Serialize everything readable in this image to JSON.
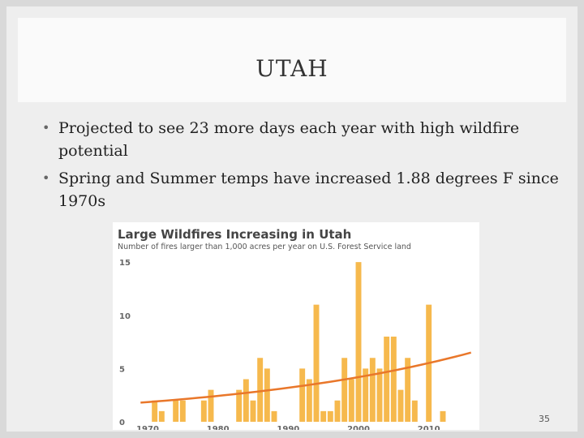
{
  "slide": {
    "title": "UTAH",
    "bullets": [
      "Projected to see 23 more days each year with high wildfire potential",
      "Spring and Summer temps have increased 1.88 degrees F since 1970s"
    ],
    "page_number": "35"
  },
  "chart_data": {
    "type": "bar",
    "title": "Large Wildfires Increasing in Utah",
    "subtitle": "Number of fires larger than 1,000 acres per year on U.S. Forest Service land",
    "x": [
      1970,
      1971,
      1972,
      1973,
      1974,
      1975,
      1976,
      1977,
      1978,
      1979,
      1980,
      1981,
      1982,
      1983,
      1984,
      1985,
      1986,
      1987,
      1988,
      1989,
      1990,
      1991,
      1992,
      1993,
      1994,
      1995,
      1996,
      1997,
      1998,
      1999,
      2000,
      2001,
      2002,
      2003,
      2004,
      2005,
      2006,
      2007,
      2008,
      2009,
      2010,
      2011,
      2012,
      2013,
      2014,
      2015,
      2016
    ],
    "values": [
      0,
      2,
      1,
      0,
      2,
      2,
      0,
      0,
      2,
      3,
      0,
      0,
      0,
      3,
      4,
      2,
      6,
      5,
      1,
      0,
      0,
      0,
      5,
      4,
      11,
      1,
      1,
      2,
      6,
      4,
      15,
      5,
      6,
      5,
      8,
      8,
      3,
      6,
      2,
      0,
      11,
      0,
      1,
      0,
      0,
      0,
      0
    ],
    "trend": {
      "start": [
        1969,
        1.8
      ],
      "end": [
        2016,
        6.5
      ]
    },
    "xticks": [
      "1970",
      "1980",
      "1990",
      "2000",
      "2010"
    ],
    "xtick_values": [
      1970,
      1980,
      1990,
      2000,
      2010
    ],
    "yticks": [
      "0",
      "5",
      "10",
      "15"
    ],
    "ytick_values": [
      0,
      5,
      10,
      15
    ],
    "ylim": [
      0,
      16
    ],
    "xlim": [
      1968.5,
      2016.5
    ],
    "grid": false,
    "bar_color": "#f6b94d",
    "trend_color": "#e9772a"
  }
}
